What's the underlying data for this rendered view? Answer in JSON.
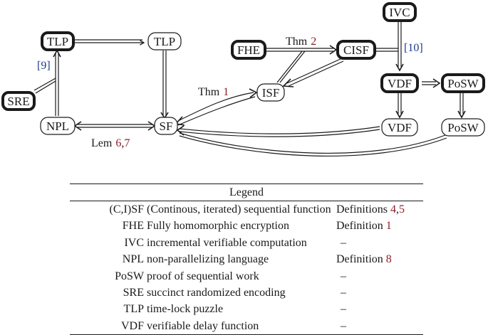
{
  "nodes": {
    "tlp_top": "TLP",
    "tlp_right": "TLP",
    "sre": "SRE",
    "npl": "NPL",
    "sf": "SF",
    "fhe": "FHE",
    "cisf": "CISF",
    "isf": "ISF",
    "ivc": "IVC",
    "vdf_top": "VDF",
    "posw_top": "PoSW",
    "vdf_bottom": "VDF",
    "posw_bottom": "PoSW"
  },
  "edge_labels": {
    "cite_9": "[9]",
    "cite_10": "[10]",
    "thm1_text": "Thm",
    "thm1_num": "1",
    "thm2_text": "Thm",
    "thm2_num": "2",
    "lem_text": "Lem",
    "lem_num1": "6",
    "lem_sep": ",",
    "lem_num2": "7"
  },
  "legend": {
    "title": "Legend",
    "rows": [
      {
        "abbr": "(C,I)SF",
        "desc": "(Continous, iterated) sequential function",
        "ref_text": "Definitions ",
        "ref_a": "4",
        "ref_sep": ",",
        "ref_b": "5"
      },
      {
        "abbr": "FHE",
        "desc": "Fully homomorphic encryption",
        "ref_text": "Definition ",
        "ref_a": "1"
      },
      {
        "abbr": "IVC",
        "desc": "incremental verifiable computation",
        "dash": "–"
      },
      {
        "abbr": "NPL",
        "desc": "non-parallelizing language",
        "ref_text": "Definition ",
        "ref_a": "8"
      },
      {
        "abbr": "PoSW",
        "desc": "proof of sequential work",
        "dash": "–"
      },
      {
        "abbr": "SRE",
        "desc": "succinct randomized encoding",
        "dash": "–"
      },
      {
        "abbr": "TLP",
        "desc": "time-lock puzzle",
        "dash": "–"
      },
      {
        "abbr": "VDF",
        "desc": "verifiable delay function",
        "dash": "–"
      }
    ]
  },
  "colors": {
    "ink": "#1a1a1a",
    "reference_red": "#8b1e2a",
    "citation_blue": "#1f3a8a"
  }
}
